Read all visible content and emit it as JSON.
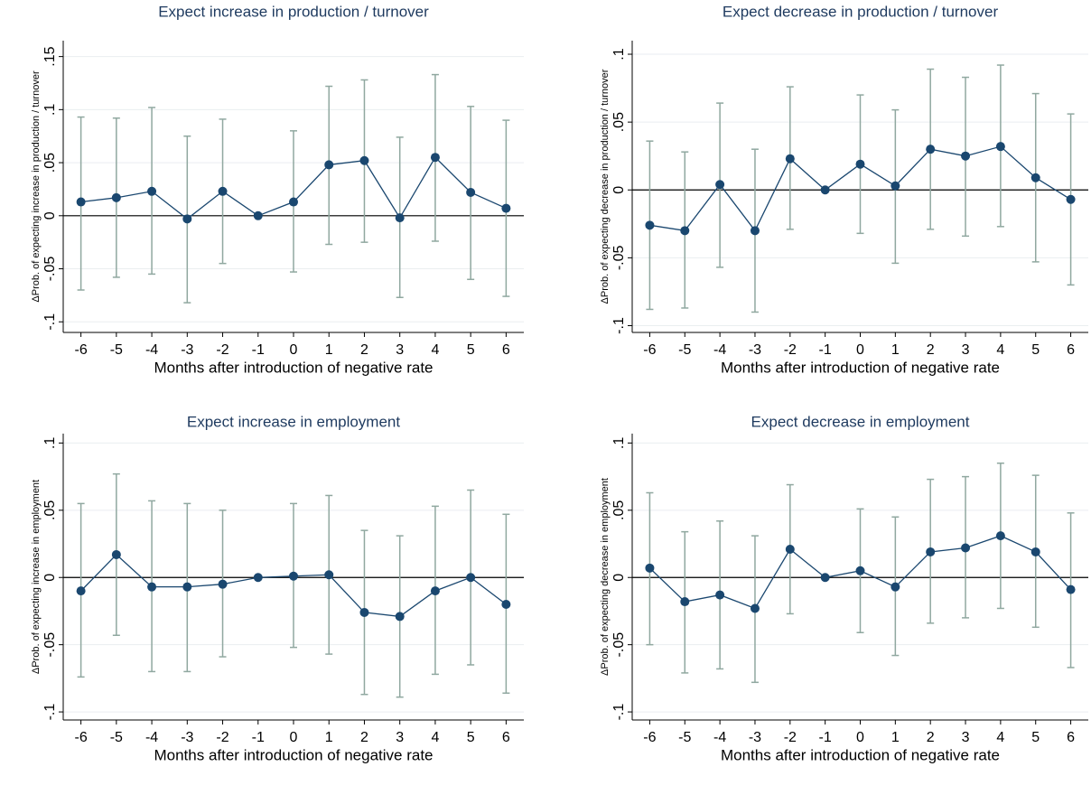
{
  "chart_data": [
    {
      "type": "line",
      "title": "Expect increase in production / turnover",
      "xlabel": "Months after introduction of negative rate",
      "ylabel": "ΔProb. of expecting increase in production / turnover",
      "x": [
        -6,
        -5,
        -4,
        -3,
        -2,
        -1,
        0,
        1,
        2,
        3,
        4,
        5,
        6
      ],
      "values": [
        0.013,
        0.017,
        0.023,
        -0.003,
        0.023,
        0,
        0.013,
        0.048,
        0.052,
        -0.002,
        0.055,
        0.022,
        0.007
      ],
      "ci_lower": [
        -0.07,
        -0.058,
        -0.055,
        -0.082,
        -0.045,
        null,
        -0.053,
        -0.027,
        -0.025,
        -0.077,
        -0.024,
        -0.06,
        -0.076
      ],
      "ci_upper": [
        0.093,
        0.092,
        0.102,
        0.075,
        0.091,
        null,
        0.08,
        0.122,
        0.128,
        0.074,
        0.133,
        0.103,
        0.09
      ],
      "xlim": [
        -6.5,
        6.5
      ],
      "xticks": [
        -6,
        -5,
        -4,
        -3,
        -2,
        -1,
        0,
        1,
        2,
        3,
        4,
        5,
        6
      ],
      "ylim": [
        -0.11,
        0.165
      ],
      "yticks": [
        {
          "value": -0.1,
          "label": "-.1"
        },
        {
          "value": -0.05,
          "label": "-.05"
        },
        0,
        {
          "value": 0.05,
          "label": ".05"
        },
        {
          "value": 0.1,
          "label": ".1"
        },
        {
          "value": 0.15,
          "label": ".15"
        }
      ],
      "hline": 0,
      "grid": true,
      "color": "#1a476f",
      "ci_color": "#90a8a0"
    },
    {
      "type": "line",
      "title": "Expect decrease in production / turnover",
      "xlabel": "Months after introduction of negative rate",
      "ylabel": "ΔProb. of expecting decrease in production / turnover",
      "x": [
        -6,
        -5,
        -4,
        -3,
        -2,
        -1,
        0,
        1,
        2,
        3,
        4,
        5,
        6
      ],
      "values": [
        -0.026,
        -0.03,
        0.004,
        -0.03,
        0.023,
        0,
        0.019,
        0.003,
        0.03,
        0.025,
        0.032,
        0.009,
        -0.007
      ],
      "ci_lower": [
        -0.088,
        -0.087,
        -0.057,
        -0.09,
        -0.029,
        null,
        -0.032,
        -0.054,
        -0.029,
        -0.034,
        -0.027,
        -0.053,
        -0.07
      ],
      "ci_upper": [
        0.036,
        0.028,
        0.064,
        0.03,
        0.076,
        null,
        0.07,
        0.059,
        0.089,
        0.083,
        0.092,
        0.071,
        0.056
      ],
      "xlim": [
        -6.5,
        6.5
      ],
      "xticks": [
        -6,
        -5,
        -4,
        -3,
        -2,
        -1,
        0,
        1,
        2,
        3,
        4,
        5,
        6
      ],
      "ylim": [
        -0.105,
        0.11
      ],
      "yticks": [
        {
          "value": -0.1,
          "label": "-.1"
        },
        {
          "value": -0.05,
          "label": "-.05"
        },
        0,
        {
          "value": 0.05,
          "label": ".05"
        },
        {
          "value": 0.1,
          "label": ".1"
        }
      ],
      "hline": 0,
      "grid": true,
      "color": "#1a476f",
      "ci_color": "#90a8a0"
    },
    {
      "type": "line",
      "title": "Expect increase in employment",
      "xlabel": "Months after introduction of negative rate",
      "ylabel": "ΔProb. of expecting increase in employment",
      "x": [
        -6,
        -5,
        -4,
        -3,
        -2,
        -1,
        0,
        1,
        2,
        3,
        4,
        5,
        6
      ],
      "values": [
        -0.01,
        0.017,
        -0.007,
        -0.007,
        -0.005,
        0,
        0.001,
        0.002,
        -0.026,
        -0.029,
        -0.01,
        0,
        -0.02
      ],
      "ci_lower": [
        -0.074,
        -0.043,
        -0.07,
        -0.07,
        -0.059,
        null,
        -0.052,
        -0.057,
        -0.087,
        -0.089,
        -0.072,
        -0.065,
        -0.086
      ],
      "ci_upper": [
        0.055,
        0.077,
        0.057,
        0.055,
        0.05,
        null,
        0.055,
        0.061,
        0.035,
        0.031,
        0.053,
        0.065,
        0.047
      ],
      "xlim": [
        -6.5,
        6.5
      ],
      "xticks": [
        -6,
        -5,
        -4,
        -3,
        -2,
        -1,
        0,
        1,
        2,
        3,
        4,
        5,
        6
      ],
      "ylim": [
        -0.106,
        0.107
      ],
      "yticks": [
        {
          "value": -0.1,
          "label": "-.1"
        },
        {
          "value": -0.05,
          "label": "-.05"
        },
        0,
        {
          "value": 0.05,
          "label": ".05"
        },
        {
          "value": 0.1,
          "label": ".1"
        }
      ],
      "hline": 0,
      "grid": true,
      "color": "#1a476f",
      "ci_color": "#90a8a0"
    },
    {
      "type": "line",
      "title": "Expect decrease in employment",
      "xlabel": "Months after introduction of negative rate",
      "ylabel": "ΔProb. of expecting decrease in employment",
      "x": [
        -6,
        -5,
        -4,
        -3,
        -2,
        -1,
        0,
        1,
        2,
        3,
        4,
        5,
        6
      ],
      "values": [
        0.007,
        -0.018,
        -0.013,
        -0.023,
        0.021,
        0,
        0.005,
        -0.007,
        0.019,
        0.022,
        0.031,
        0.019,
        -0.009
      ],
      "ci_lower": [
        -0.05,
        -0.071,
        -0.068,
        -0.078,
        -0.027,
        null,
        -0.041,
        -0.058,
        -0.034,
        -0.03,
        -0.023,
        -0.037,
        -0.067
      ],
      "ci_upper": [
        0.063,
        0.034,
        0.042,
        0.031,
        0.069,
        null,
        0.051,
        0.045,
        0.073,
        0.075,
        0.085,
        0.076,
        0.048
      ],
      "xlim": [
        -6.5,
        6.5
      ],
      "xticks": [
        -6,
        -5,
        -4,
        -3,
        -2,
        -1,
        0,
        1,
        2,
        3,
        4,
        5,
        6
      ],
      "ylim": [
        -0.106,
        0.107
      ],
      "yticks": [
        {
          "value": -0.1,
          "label": "-.1"
        },
        {
          "value": -0.05,
          "label": "-.05"
        },
        0,
        {
          "value": 0.05,
          "label": ".05"
        },
        {
          "value": 0.1,
          "label": ".1"
        }
      ],
      "hline": 0,
      "grid": true,
      "color": "#1a476f",
      "ci_color": "#90a8a0"
    }
  ]
}
